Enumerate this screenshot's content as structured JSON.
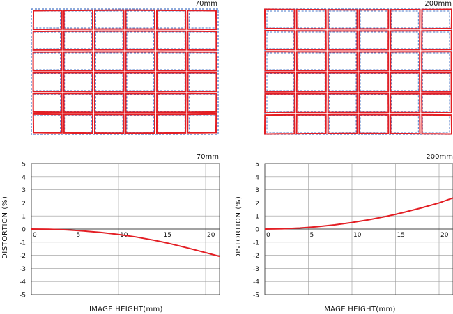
{
  "colors": {
    "actual": "#e31e24",
    "ideal": "#4a78c8",
    "grid": "#999999",
    "frame": "#333333"
  },
  "chart_data": [
    {
      "type": "diagram",
      "focal_label": "70mm",
      "distortion_type": "barrel",
      "grid_cols": 6,
      "grid_rows": 6
    },
    {
      "type": "diagram",
      "focal_label": "200mm",
      "distortion_type": "pincushion",
      "grid_cols": 6,
      "grid_rows": 6
    },
    {
      "type": "line",
      "focal_label": "70mm",
      "xlabel": "IMAGE HEIGHT(mm)",
      "ylabel": "DISTORTION (%)",
      "xlim": [
        0,
        21.6
      ],
      "ylim": [
        -5,
        5
      ],
      "xticks": [
        0,
        5,
        10,
        15,
        20
      ],
      "yticks": [
        5,
        4,
        3,
        2,
        1,
        0,
        -1,
        -2,
        -3,
        -4,
        -5
      ],
      "series": [
        {
          "x": [
            0,
            2,
            4,
            5,
            6,
            8,
            10,
            12,
            14,
            15,
            16,
            18,
            20,
            21.6
          ],
          "y": [
            0,
            -0.01,
            -0.06,
            -0.1,
            -0.15,
            -0.26,
            -0.41,
            -0.6,
            -0.84,
            -0.98,
            -1.13,
            -1.45,
            -1.8,
            -2.08
          ]
        }
      ]
    },
    {
      "type": "line",
      "focal_label": "200mm",
      "xlabel": "IMAGE HEIGHT(mm)",
      "ylabel": "DISTORTION (%)",
      "xlim": [
        0,
        21.6
      ],
      "ylim": [
        -5,
        5
      ],
      "xticks": [
        0,
        5,
        10,
        15,
        20
      ],
      "yticks": [
        5,
        4,
        3,
        2,
        1,
        0,
        -1,
        -2,
        -3,
        -4,
        -5
      ],
      "series": [
        {
          "x": [
            0,
            2,
            4,
            5,
            6,
            8,
            10,
            12,
            14,
            15,
            16,
            18,
            20,
            21.6
          ],
          "y": [
            0,
            0.02,
            0.08,
            0.13,
            0.18,
            0.32,
            0.5,
            0.72,
            0.98,
            1.12,
            1.28,
            1.62,
            2.0,
            2.38
          ]
        }
      ]
    }
  ]
}
